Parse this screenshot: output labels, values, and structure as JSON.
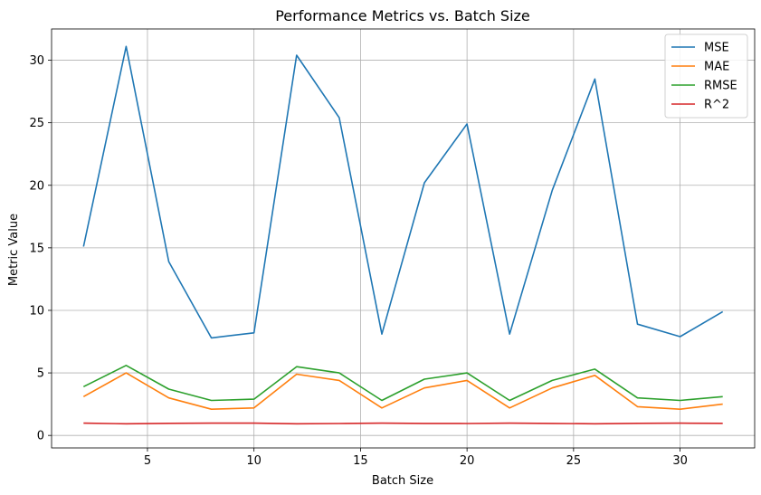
{
  "chart_data": {
    "type": "line",
    "title": "Performance Metrics vs. Batch Size",
    "xlabel": "Batch Size",
    "ylabel": "Metric Value",
    "xlim": [
      0.5,
      33.5
    ],
    "ylim": [
      -1,
      32.5
    ],
    "xticks": [
      5,
      10,
      15,
      20,
      25,
      30
    ],
    "yticks": [
      0,
      5,
      10,
      15,
      20,
      25,
      30
    ],
    "grid": true,
    "legend_position": "top-right",
    "x": [
      2,
      4,
      6,
      8,
      10,
      12,
      14,
      16,
      18,
      20,
      22,
      24,
      26,
      28,
      30,
      32
    ],
    "series": [
      {
        "name": "MSE",
        "color": "#1f77b4",
        "values": [
          15.1,
          31.1,
          13.9,
          7.8,
          8.2,
          30.4,
          25.4,
          8.1,
          20.2,
          24.9,
          8.1,
          19.6,
          28.5,
          8.9,
          7.9,
          9.9
        ]
      },
      {
        "name": "MAE",
        "color": "#ff7f0e",
        "values": [
          3.1,
          5.0,
          3.0,
          2.1,
          2.2,
          4.9,
          4.4,
          2.2,
          3.8,
          4.4,
          2.2,
          3.8,
          4.8,
          2.3,
          2.1,
          2.5
        ]
      },
      {
        "name": "RMSE",
        "color": "#2ca02c",
        "values": [
          3.9,
          5.6,
          3.7,
          2.8,
          2.9,
          5.5,
          5.0,
          2.8,
          4.5,
          5.0,
          2.8,
          4.4,
          5.3,
          3.0,
          2.8,
          3.1
        ]
      },
      {
        "name": "R^2",
        "color": "#d62728",
        "values": [
          0.98,
          0.93,
          0.97,
          0.98,
          0.98,
          0.93,
          0.95,
          0.98,
          0.96,
          0.95,
          0.98,
          0.96,
          0.93,
          0.97,
          0.98,
          0.97
        ]
      }
    ]
  }
}
